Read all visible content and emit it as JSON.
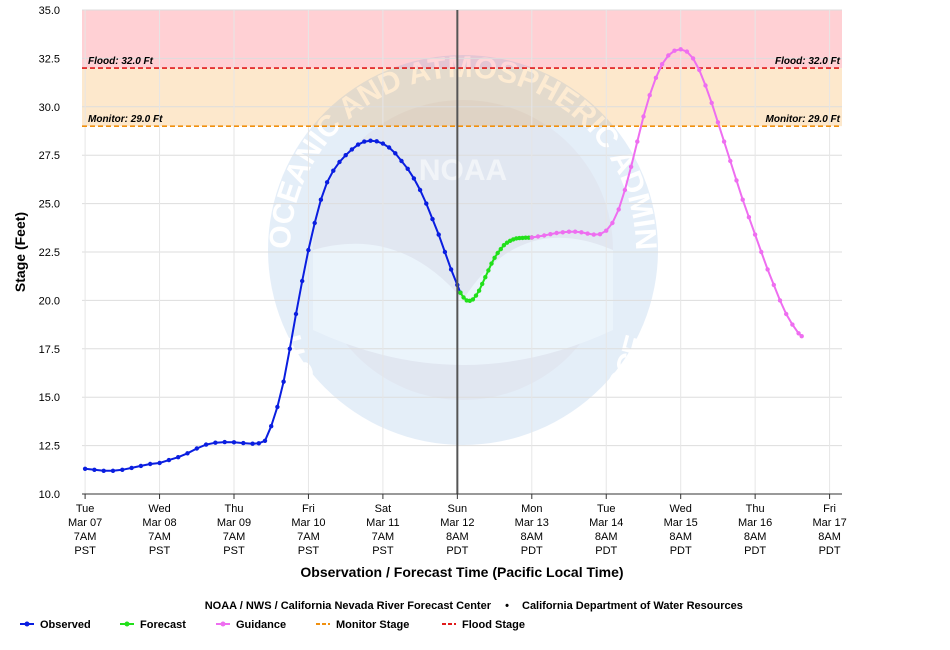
{
  "chart_data": {
    "type": "line",
    "ylabel": "Stage (Feet)",
    "xlabel": "Observation / Forecast Time (Pacific Local Time)",
    "ylim": [
      10.0,
      35.0
    ],
    "yticks": [
      "10.0",
      "12.5",
      "15.0",
      "17.5",
      "20.0",
      "22.5",
      "25.0",
      "27.5",
      "30.0",
      "32.5",
      "35.0"
    ],
    "x_unit": "hours since first tick label (Tue Mar 07 7AM PST)",
    "xlim": [
      -1,
      244
    ],
    "xticks": [
      {
        "lines": [
          "Tue",
          "Mar 07",
          "7AM",
          "PST"
        ]
      },
      {
        "lines": [
          "Wed",
          "Mar 08",
          "7AM",
          "PST"
        ]
      },
      {
        "lines": [
          "Thu",
          "Mar 09",
          "7AM",
          "PST"
        ]
      },
      {
        "lines": [
          "Fri",
          "Mar 10",
          "7AM",
          "PST"
        ]
      },
      {
        "lines": [
          "Sat",
          "Mar 11",
          "7AM",
          "PST"
        ]
      },
      {
        "lines": [
          "Sun",
          "Mar 12",
          "8AM",
          "PDT"
        ]
      },
      {
        "lines": [
          "Mon",
          "Mar 13",
          "8AM",
          "PDT"
        ]
      },
      {
        "lines": [
          "Tue",
          "Mar 14",
          "8AM",
          "PDT"
        ]
      },
      {
        "lines": [
          "Wed",
          "Mar 15",
          "8AM",
          "PDT"
        ]
      },
      {
        "lines": [
          "Thu",
          "Mar 16",
          "8AM",
          "PDT"
        ]
      },
      {
        "lines": [
          "Fri",
          "Mar 17",
          "8AM",
          "PDT"
        ]
      }
    ],
    "xtick_values": [
      0,
      24,
      48,
      72,
      96,
      120,
      144,
      168,
      192,
      216,
      240
    ],
    "now_marker_x": 120,
    "thresholds": [
      {
        "name": "Flood Stage",
        "label": "Flood: 32.0 Ft",
        "value": 32.0,
        "color": "#e01b1b",
        "band_color": "#ffd0d4"
      },
      {
        "name": "Monitor Stage",
        "label": "Monitor: 29.0 Ft",
        "value": 29.0,
        "color": "#f0900f",
        "band_color": "#fde8cc"
      }
    ],
    "series": [
      {
        "name": "Observed",
        "color": "#0a1ee0",
        "points": [
          [
            0,
            11.3
          ],
          [
            3,
            11.25
          ],
          [
            6,
            11.2
          ],
          [
            9,
            11.2
          ],
          [
            12,
            11.25
          ],
          [
            15,
            11.35
          ],
          [
            18,
            11.45
          ],
          [
            21,
            11.55
          ],
          [
            24,
            11.6
          ],
          [
            27,
            11.75
          ],
          [
            30,
            11.9
          ],
          [
            33,
            12.1
          ],
          [
            36,
            12.35
          ],
          [
            39,
            12.55
          ],
          [
            42,
            12.65
          ],
          [
            45,
            12.68
          ],
          [
            48,
            12.67
          ],
          [
            51,
            12.63
          ],
          [
            54,
            12.6
          ],
          [
            56,
            12.62
          ],
          [
            58,
            12.75
          ],
          [
            60,
            13.5
          ],
          [
            62,
            14.5
          ],
          [
            64,
            15.8
          ],
          [
            66,
            17.5
          ],
          [
            68,
            19.3
          ],
          [
            70,
            21.0
          ],
          [
            72,
            22.6
          ],
          [
            74,
            24.0
          ],
          [
            76,
            25.2
          ],
          [
            78,
            26.1
          ],
          [
            80,
            26.7
          ],
          [
            82,
            27.15
          ],
          [
            84,
            27.5
          ],
          [
            86,
            27.8
          ],
          [
            88,
            28.05
          ],
          [
            90,
            28.2
          ],
          [
            92,
            28.25
          ],
          [
            94,
            28.22
          ],
          [
            96,
            28.1
          ],
          [
            98,
            27.9
          ],
          [
            100,
            27.6
          ],
          [
            102,
            27.2
          ],
          [
            104,
            26.8
          ],
          [
            106,
            26.3
          ],
          [
            108,
            25.7
          ],
          [
            110,
            25.0
          ],
          [
            112,
            24.2
          ],
          [
            114,
            23.4
          ],
          [
            116,
            22.5
          ],
          [
            118,
            21.6
          ],
          [
            120,
            20.8
          ],
          [
            121,
            20.4
          ]
        ]
      },
      {
        "name": "Forecast",
        "color": "#22e01b",
        "points": [
          [
            121,
            20.4
          ],
          [
            122,
            20.15
          ],
          [
            123,
            20.0
          ],
          [
            124,
            19.98
          ],
          [
            125,
            20.05
          ],
          [
            126,
            20.25
          ],
          [
            127,
            20.5
          ],
          [
            128,
            20.85
          ],
          [
            129,
            21.2
          ],
          [
            130,
            21.55
          ],
          [
            131,
            21.9
          ],
          [
            132,
            22.2
          ],
          [
            133,
            22.45
          ],
          [
            134,
            22.65
          ],
          [
            135,
            22.85
          ],
          [
            136,
            22.98
          ],
          [
            137,
            23.08
          ],
          [
            138,
            23.15
          ],
          [
            139,
            23.2
          ],
          [
            140,
            23.22
          ],
          [
            141,
            23.23
          ],
          [
            142,
            23.24
          ],
          [
            143,
            23.24
          ],
          [
            144,
            23.25
          ]
        ]
      },
      {
        "name": "Guidance",
        "color": "#ee6ef0",
        "points": [
          [
            144,
            23.25
          ],
          [
            146,
            23.3
          ],
          [
            148,
            23.35
          ],
          [
            150,
            23.42
          ],
          [
            152,
            23.48
          ],
          [
            154,
            23.52
          ],
          [
            156,
            23.55
          ],
          [
            158,
            23.55
          ],
          [
            160,
            23.52
          ],
          [
            162,
            23.45
          ],
          [
            164,
            23.4
          ],
          [
            166,
            23.42
          ],
          [
            168,
            23.6
          ],
          [
            170,
            24.0
          ],
          [
            172,
            24.7
          ],
          [
            174,
            25.7
          ],
          [
            176,
            26.9
          ],
          [
            178,
            28.2
          ],
          [
            180,
            29.5
          ],
          [
            182,
            30.6
          ],
          [
            184,
            31.5
          ],
          [
            186,
            32.2
          ],
          [
            188,
            32.65
          ],
          [
            190,
            32.9
          ],
          [
            192,
            32.97
          ],
          [
            194,
            32.85
          ],
          [
            196,
            32.5
          ],
          [
            198,
            31.9
          ],
          [
            200,
            31.1
          ],
          [
            202,
            30.2
          ],
          [
            204,
            29.2
          ],
          [
            206,
            28.2
          ],
          [
            208,
            27.2
          ],
          [
            210,
            26.2
          ],
          [
            212,
            25.2
          ],
          [
            214,
            24.3
          ],
          [
            216,
            23.4
          ],
          [
            218,
            22.5
          ],
          [
            220,
            21.6
          ],
          [
            222,
            20.8
          ],
          [
            224,
            20.0
          ],
          [
            226,
            19.3
          ],
          [
            228,
            18.75
          ],
          [
            230,
            18.3
          ],
          [
            231,
            18.15
          ]
        ]
      }
    ]
  },
  "watermark": {
    "logo_text": "NOAA",
    "ring_text_top": "NATIONAL OCEANIC AND ATMOSPHERIC ADMINISTRATION",
    "ring_text_bottom": "U.S. DEPARTMENT OF COMMERCE"
  },
  "credits": {
    "left": "NOAA / NWS / California Nevada River Forecast Center",
    "separator": "•",
    "right": "California Department of Water Resources"
  },
  "legend": [
    {
      "label": "Observed",
      "color": "#0a1ee0",
      "style": "line-dot"
    },
    {
      "label": "Forecast",
      "color": "#22e01b",
      "style": "line-dot"
    },
    {
      "label": "Guidance",
      "color": "#ee6ef0",
      "style": "line-dot"
    },
    {
      "label": "Monitor Stage",
      "color": "#f0900f",
      "style": "dashed"
    },
    {
      "label": "Flood Stage",
      "color": "#e01b1b",
      "style": "dashed"
    }
  ]
}
